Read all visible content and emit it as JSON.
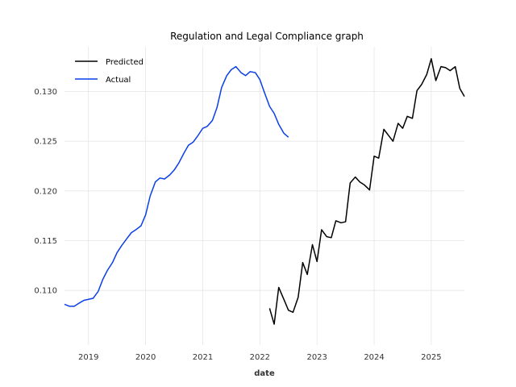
{
  "chart_data": {
    "type": "line",
    "title": "Regulation and Legal Compliance graph",
    "xlabel": "date",
    "ylabel": "",
    "xlim": [
      2018.58,
      2025.58
    ],
    "ylim": [
      0.1045,
      0.1345
    ],
    "x_ticks": [
      2019,
      2020,
      2021,
      2022,
      2023,
      2024,
      2025
    ],
    "x_tick_labels": [
      "2019",
      "2020",
      "2021",
      "2022",
      "2023",
      "2024",
      "2025"
    ],
    "y_ticks": [
      0.11,
      0.115,
      0.12,
      0.125,
      0.13
    ],
    "y_tick_labels": [
      "0.110",
      "0.115",
      "0.120",
      "0.125",
      "0.130"
    ],
    "grid": true,
    "legend_position": "top-left",
    "series": [
      {
        "name": "Predicted",
        "color": "#000000",
        "x": [
          2022.17,
          2022.25,
          2022.33,
          2022.42,
          2022.5,
          2022.58,
          2022.67,
          2022.75,
          2022.83,
          2022.92,
          2023.0,
          2023.08,
          2023.17,
          2023.25,
          2023.33,
          2023.42,
          2023.5,
          2023.58,
          2023.67,
          2023.75,
          2023.83,
          2023.92,
          2024.0,
          2024.08,
          2024.17,
          2024.25,
          2024.33,
          2024.42,
          2024.5,
          2024.58,
          2024.67,
          2024.75,
          2024.83,
          2024.92,
          2025.0,
          2025.08,
          2025.17,
          2025.25,
          2025.33,
          2025.42,
          2025.5,
          2025.58
        ],
        "y": [
          0.1082,
          0.1066,
          0.1103,
          0.1091,
          0.108,
          0.1078,
          0.1093,
          0.1128,
          0.1116,
          0.1146,
          0.1129,
          0.1161,
          0.1154,
          0.1153,
          0.117,
          0.1168,
          0.1169,
          0.1208,
          0.1214,
          0.1209,
          0.1206,
          0.1201,
          0.1235,
          0.1233,
          0.1262,
          0.1256,
          0.125,
          0.1268,
          0.1263,
          0.1275,
          0.1273,
          0.1301,
          0.1307,
          0.1317,
          0.1333,
          0.1311,
          0.1325,
          0.1324,
          0.1321,
          0.1325,
          0.1303,
          0.1295
        ]
      },
      {
        "name": "Actual",
        "color": "#0a3fe8",
        "x": [
          2018.58,
          2018.67,
          2018.75,
          2018.83,
          2018.92,
          2019.0,
          2019.08,
          2019.17,
          2019.25,
          2019.33,
          2019.42,
          2019.5,
          2019.58,
          2019.67,
          2019.75,
          2019.83,
          2019.92,
          2020.0,
          2020.08,
          2020.17,
          2020.25,
          2020.33,
          2020.42,
          2020.5,
          2020.58,
          2020.67,
          2020.75,
          2020.83,
          2020.92,
          2021.0,
          2021.08,
          2021.17,
          2021.25,
          2021.33,
          2021.42,
          2021.5,
          2021.58,
          2021.67,
          2021.75,
          2021.83,
          2021.92,
          2022.0,
          2022.08,
          2022.17,
          2022.25,
          2022.33,
          2022.42,
          2022.5
        ],
        "y": [
          0.1086,
          0.1084,
          0.1084,
          0.1087,
          0.109,
          0.1091,
          0.1092,
          0.1099,
          0.1111,
          0.112,
          0.1128,
          0.1138,
          0.1145,
          0.1152,
          0.1158,
          0.1161,
          0.1165,
          0.1176,
          0.1195,
          0.1209,
          0.1213,
          0.1212,
          0.1216,
          0.1221,
          0.1228,
          0.1238,
          0.1246,
          0.1249,
          0.1256,
          0.1263,
          0.1265,
          0.1271,
          0.1284,
          0.1304,
          0.1316,
          0.1322,
          0.1325,
          0.1319,
          0.1316,
          0.132,
          0.1319,
          0.1312,
          0.1299,
          0.1285,
          0.1278,
          0.1267,
          0.1258,
          0.1254
        ]
      }
    ]
  }
}
